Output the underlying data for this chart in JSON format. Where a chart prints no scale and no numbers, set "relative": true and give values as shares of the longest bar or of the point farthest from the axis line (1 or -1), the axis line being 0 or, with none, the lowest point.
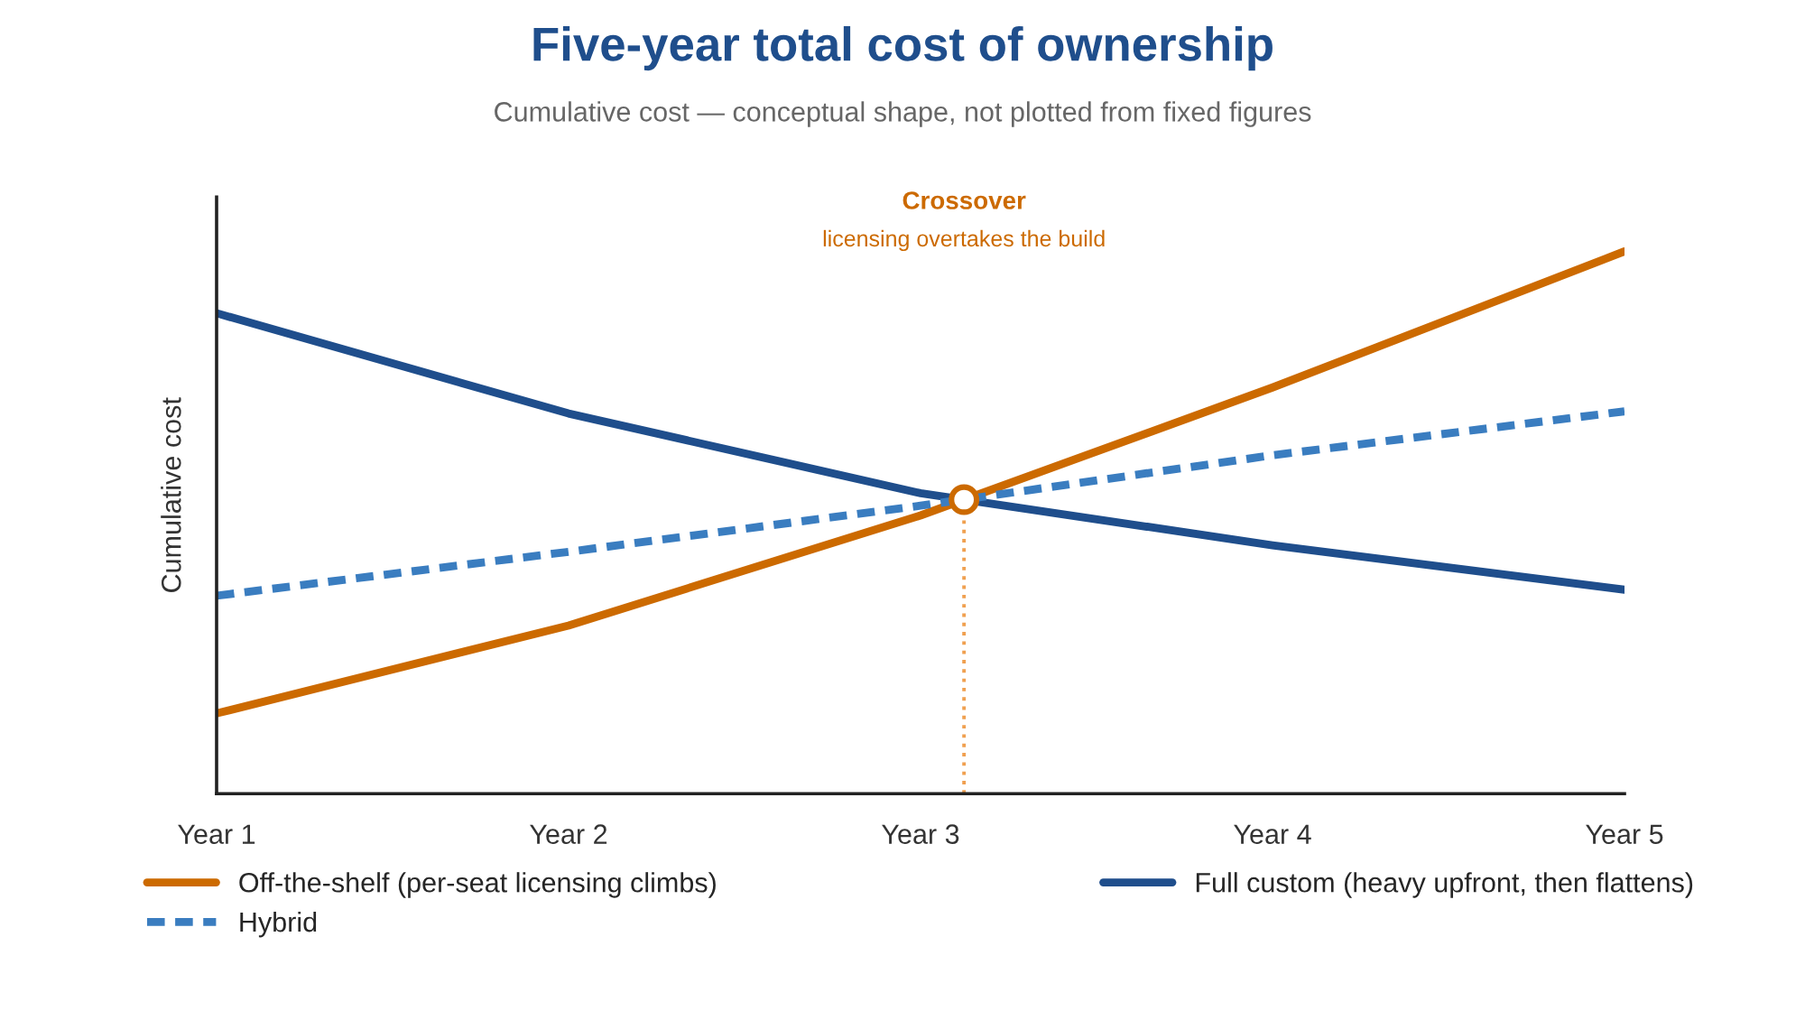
{
  "chart_data": {
    "type": "line",
    "title": "Five-year total cost of ownership",
    "subtitle": "Cumulative cost — conceptual shape, not plotted from fixed figures",
    "ylabel": "Cumulative cost",
    "relative": true,
    "categories": [
      "Year 1",
      "Year 2",
      "Year 3",
      "Year 4",
      "Year 5"
    ],
    "series": [
      {
        "name": "Off-the-shelf (per-seat licensing climbs)",
        "color": "#cc6a00",
        "values": [
          0.148,
          0.31,
          0.513,
          0.749,
          1
        ],
        "line_style": "solid"
      },
      {
        "name": "Full custom (heavy upfront, then flattens)",
        "color": "#1f4e8c",
        "values": [
          0.886,
          0.701,
          0.554,
          0.458,
          0.376
        ],
        "line_style": "solid"
      },
      {
        "name": "Hybrid",
        "color": "#3a7dc0",
        "values": [
          0.365,
          0.446,
          0.531,
          0.624,
          0.705
        ],
        "line_style": "dashed"
      }
    ],
    "annotations": [
      "Crossover",
      "licensing overtakes the build"
    ],
    "grid": false,
    "legend": "bottom",
    "marker": "none"
  }
}
